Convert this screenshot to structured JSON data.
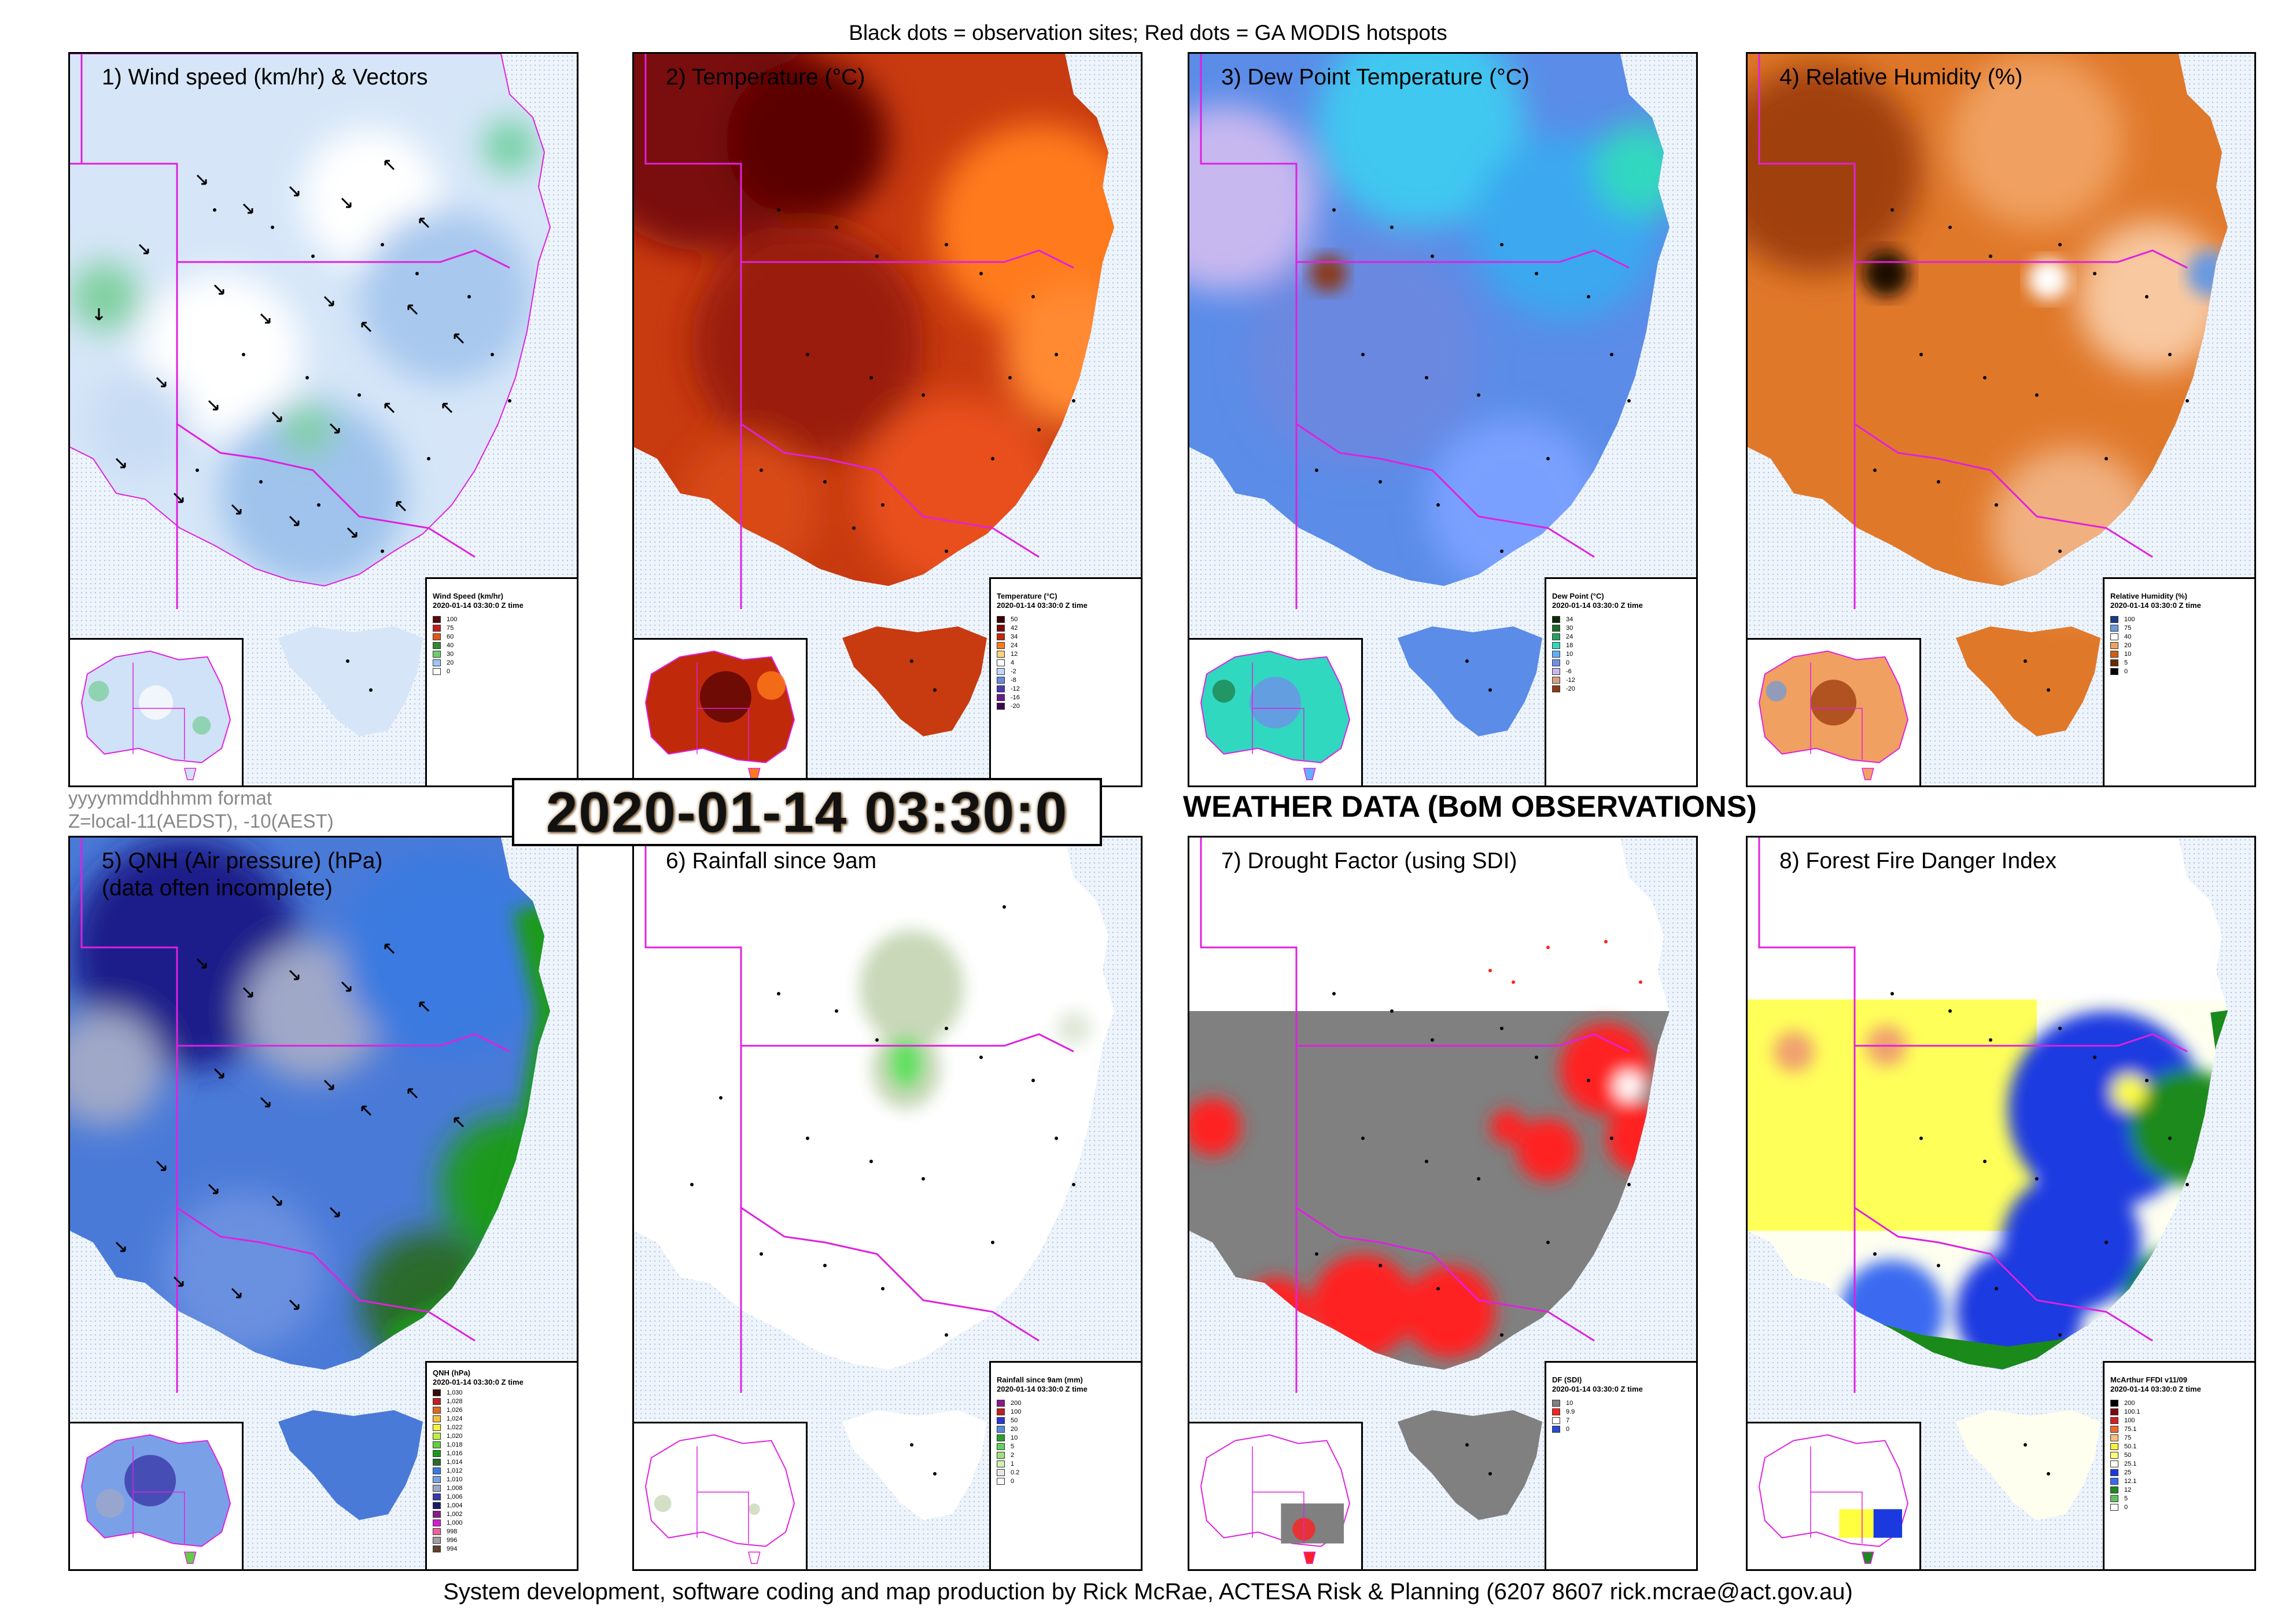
{
  "header": {
    "text": "Black dots = observation sites; Red dots = GA MODIS hotspots"
  },
  "footer": {
    "text": "System development, software coding and map production by Rick McRae, ACTESA Risk & Planning (6207 8607 rick.mcrae@act.gov.au)"
  },
  "timestamp": {
    "display": "2020-01-14 03:30:0",
    "format_note": "yyyymmddhhmm format",
    "zone_note": "Z=local-11(AEDST), -10(AEST)"
  },
  "page_title": "WEATHER DATA (BoM OBSERVATIONS)",
  "panels": [
    {
      "title": "1) Wind speed (km/hr) & Vectors",
      "subtitle": "",
      "legend_title": "Wind Speed (km/hr)",
      "legend_time": "2020-01-14 03:30:0 Z time",
      "legend": [
        {
          "label": "100",
          "color": "#5a0a0a"
        },
        {
          "label": "75",
          "color": "#c02020"
        },
        {
          "label": "60",
          "color": "#e05a1a"
        },
        {
          "label": "40",
          "color": "#2e8b2e"
        },
        {
          "label": "30",
          "color": "#6ccf6c"
        },
        {
          "label": "20",
          "color": "#9fc6ef"
        },
        {
          "label": "0",
          "color": "#ffffff"
        }
      ]
    },
    {
      "title": "2) Temperature (°C)",
      "subtitle": "",
      "legend_title": "Temperature (°C)",
      "legend_time": "2020-01-14 03:30:0 Z time",
      "legend": [
        {
          "label": "50",
          "color": "#3a0000"
        },
        {
          "label": "42",
          "color": "#7a0a0a"
        },
        {
          "label": "34",
          "color": "#c02a0a"
        },
        {
          "label": "24",
          "color": "#ff7a1a"
        },
        {
          "label": "12",
          "color": "#ffd27a"
        },
        {
          "label": "4",
          "color": "#ffffff"
        },
        {
          "label": "-2",
          "color": "#c0d8ff"
        },
        {
          "label": "-8",
          "color": "#6a8ae0"
        },
        {
          "label": "-12",
          "color": "#4a3ab0"
        },
        {
          "label": "-16",
          "color": "#6a1a8a"
        },
        {
          "label": "-20",
          "color": "#3a0a4a"
        }
      ]
    },
    {
      "title": "3) Dew Point Temperature (°C)",
      "subtitle": "",
      "legend_title": "Dew Point (°C)",
      "legend_time": "2020-01-14 03:30:0 Z time",
      "legend": [
        {
          "label": "34",
          "color": "#0a2a0a"
        },
        {
          "label": "30",
          "color": "#1a6a2a"
        },
        {
          "label": "24",
          "color": "#2aa060"
        },
        {
          "label": "18",
          "color": "#30d8c0"
        },
        {
          "label": "10",
          "color": "#60b0ff"
        },
        {
          "label": "0",
          "color": "#7090e8"
        },
        {
          "label": "-6",
          "color": "#c8b8f0"
        },
        {
          "label": "-12",
          "color": "#d8a080"
        },
        {
          "label": "-20",
          "color": "#8a3a1a"
        }
      ]
    },
    {
      "title": "4) Relative Humidity (%)",
      "subtitle": "",
      "legend_title": "Relative Humidity (%)",
      "legend_time": "2020-01-14 03:30:0 Z time",
      "legend": [
        {
          "label": "100",
          "color": "#1a3a8a"
        },
        {
          "label": "75",
          "color": "#6a9ae0"
        },
        {
          "label": "40",
          "color": "#ffffff"
        },
        {
          "label": "20",
          "color": "#f0a060"
        },
        {
          "label": "10",
          "color": "#d06010"
        },
        {
          "label": "5",
          "color": "#6a2a08"
        },
        {
          "label": "0",
          "color": "#000000"
        }
      ]
    },
    {
      "title": "5) QNH (Air pressure) (hPa)",
      "subtitle": "(data often incomplete)",
      "legend_title": "QNH (hPa)",
      "legend_time": "2020-01-14 03:30:0 Z time",
      "legend": [
        {
          "label": "1,030",
          "color": "#3a0a0a"
        },
        {
          "label": "1,028",
          "color": "#c02020"
        },
        {
          "label": "1,026",
          "color": "#e06a1a"
        },
        {
          "label": "1,024",
          "color": "#f0c040"
        },
        {
          "label": "1,022",
          "color": "#f8f040"
        },
        {
          "label": "1,020",
          "color": "#c0f040"
        },
        {
          "label": "1,018",
          "color": "#60d040"
        },
        {
          "label": "1,016",
          "color": "#1a9a1a"
        },
        {
          "label": "1,014",
          "color": "#2a6a2a"
        },
        {
          "label": "1,012",
          "color": "#3a7ae0"
        },
        {
          "label": "1,010",
          "color": "#7aa0e8"
        },
        {
          "label": "1,008",
          "color": "#a0a8c8"
        },
        {
          "label": "1,006",
          "color": "#3a3aa8"
        },
        {
          "label": "1,004",
          "color": "#1a1a6a"
        },
        {
          "label": "1,002",
          "color": "#8a1a8a"
        },
        {
          "label": "1,000",
          "color": "#d020d0"
        },
        {
          "label": "998",
          "color": "#f060a0"
        },
        {
          "label": "996",
          "color": "#a0a0a0"
        },
        {
          "label": "994",
          "color": "#604030"
        }
      ]
    },
    {
      "title": "6) Rainfall since 9am",
      "subtitle": "",
      "legend_title": "Rainfall since 9am (mm)",
      "legend_time": "2020-01-14 03:30:0 Z time",
      "legend": [
        {
          "label": "200",
          "color": "#8a1a8a"
        },
        {
          "label": "100",
          "color": "#c02020"
        },
        {
          "label": "50",
          "color": "#2a3ad0"
        },
        {
          "label": "20",
          "color": "#5a8ae0"
        },
        {
          "label": "10",
          "color": "#2aa02a"
        },
        {
          "label": "5",
          "color": "#60d060"
        },
        {
          "label": "2",
          "color": "#a0e080"
        },
        {
          "label": "1",
          "color": "#d0f0b0"
        },
        {
          "label": "0.2",
          "color": "#e8e8e8"
        },
        {
          "label": "0",
          "color": "#ffffff"
        }
      ]
    },
    {
      "title": "7) Drought Factor (using SDI)",
      "subtitle": "",
      "legend_title": "DF (SDI)",
      "legend_time": "2020-01-14 03:30:0 Z time",
      "legend": [
        {
          "label": "10",
          "color": "#808080"
        },
        {
          "label": "9.9",
          "color": "#ff2020"
        },
        {
          "label": "7",
          "color": "#ffffff"
        },
        {
          "label": "0",
          "color": "#2a4ad0"
        }
      ]
    },
    {
      "title": "8) Forest Fire Danger Index",
      "subtitle": "",
      "legend_title": "McArthur FFDI v11/09",
      "legend_time": "2020-01-14 03:30:0 Z time",
      "legend": [
        {
          "label": "200",
          "color": "#000000"
        },
        {
          "label": "100.1",
          "color": "#7a0a0a"
        },
        {
          "label": "100",
          "color": "#d02020"
        },
        {
          "label": "75.1",
          "color": "#f06a30"
        },
        {
          "label": "75",
          "color": "#f8c080"
        },
        {
          "label": "50.1",
          "color": "#f8f040"
        },
        {
          "label": "50",
          "color": "#ffff80"
        },
        {
          "label": "25.1",
          "color": "#fffff0"
        },
        {
          "label": "25",
          "color": "#1a3ae0"
        },
        {
          "label": "12.1",
          "color": "#3a6af0"
        },
        {
          "label": "12",
          "color": "#1a8a1a"
        },
        {
          "label": "5",
          "color": "#60c060"
        },
        {
          "label": "0",
          "color": "#ffffff"
        }
      ]
    }
  ]
}
